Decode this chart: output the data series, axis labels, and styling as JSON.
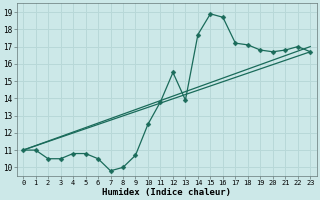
{
  "xlabel": "Humidex (Indice chaleur)",
  "bg_color": "#cce8e8",
  "grid_color": "#b8d8d8",
  "line_color": "#1a6b5a",
  "xlim": [
    -0.5,
    23.5
  ],
  "ylim": [
    9.5,
    19.5
  ],
  "xticks": [
    0,
    1,
    2,
    3,
    4,
    5,
    6,
    7,
    8,
    9,
    10,
    11,
    12,
    13,
    14,
    15,
    16,
    17,
    18,
    19,
    20,
    21,
    22,
    23
  ],
  "yticks": [
    10,
    11,
    12,
    13,
    14,
    15,
    16,
    17,
    18,
    19
  ],
  "line1_x": [
    0,
    1,
    2,
    3,
    4,
    5,
    6,
    7,
    8,
    9,
    10,
    11,
    12,
    13,
    14,
    15,
    16,
    17,
    18,
    19,
    20,
    21,
    22,
    23
  ],
  "line1_y": [
    11.0,
    11.0,
    10.5,
    10.5,
    10.8,
    10.8,
    10.5,
    9.8,
    10.0,
    10.7,
    12.5,
    13.8,
    15.5,
    13.9,
    17.7,
    18.9,
    18.7,
    17.2,
    17.1,
    16.8,
    16.7,
    16.8,
    17.0,
    16.7
  ],
  "line2_x": [
    0,
    23
  ],
  "line2_y": [
    11.0,
    16.7
  ],
  "line3_x": [
    0,
    23
  ],
  "line3_y": [
    11.0,
    17.0
  ],
  "marker_size": 2.5,
  "linewidth": 0.9,
  "tick_fontsize": 5.0,
  "xlabel_fontsize": 6.5
}
